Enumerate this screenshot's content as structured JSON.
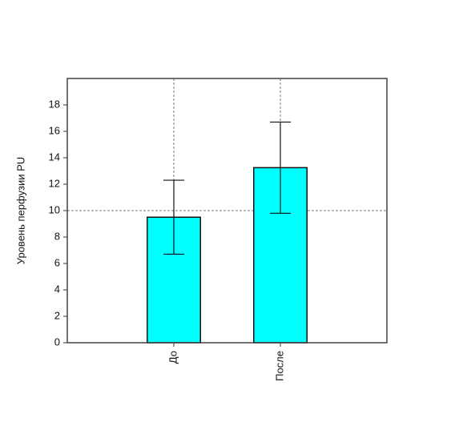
{
  "chart_data": {
    "type": "bar",
    "categories": [
      "До",
      "После"
    ],
    "values": [
      9.5,
      13.25
    ],
    "errors": [
      2.8,
      3.45
    ],
    "color": "#00ffff",
    "y_label": "Уровень перфузии PU",
    "ylim": [
      0,
      20
    ],
    "yticks": [
      0,
      2,
      4,
      6,
      8,
      10,
      12,
      14,
      16,
      18
    ],
    "reference_line": 10,
    "category_grid": true
  }
}
